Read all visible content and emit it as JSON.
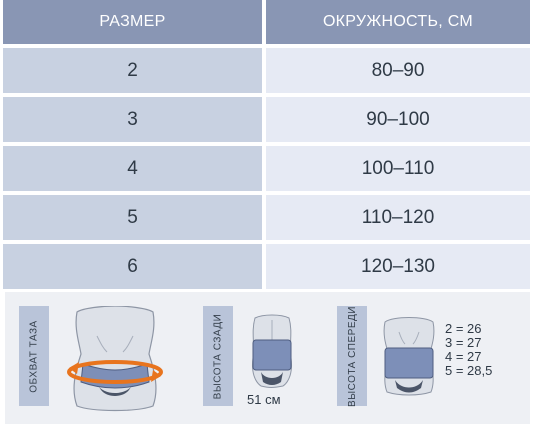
{
  "table": {
    "headers": {
      "size": "РАЗМЕР",
      "circumference": "ОКРУЖНОСТЬ, СМ"
    },
    "rows": [
      {
        "size": "2",
        "range": "80–90"
      },
      {
        "size": "3",
        "range": "90–100"
      },
      {
        "size": "4",
        "range": "100–110"
      },
      {
        "size": "5",
        "range": "110–120"
      },
      {
        "size": "6",
        "range": "120–130"
      }
    ]
  },
  "illustrations": {
    "hip": {
      "label": "ОБХВАТ ТАЗА"
    },
    "back": {
      "label": "ВЫСОТА СЗАДИ",
      "value": "51 см"
    },
    "front": {
      "label": "ВЫСОТА СПЕРЕДИ",
      "sizes": [
        "2 = 26",
        "3 = 27",
        "4 = 27",
        "5 = 28,5"
      ]
    }
  },
  "colors": {
    "header_bg": "#8996b4",
    "size_col_bg": "#c8d1e1",
    "range_col_bg": "#e6eaf4",
    "belt": "#7d8fb8",
    "arrow": "#e8741e"
  }
}
